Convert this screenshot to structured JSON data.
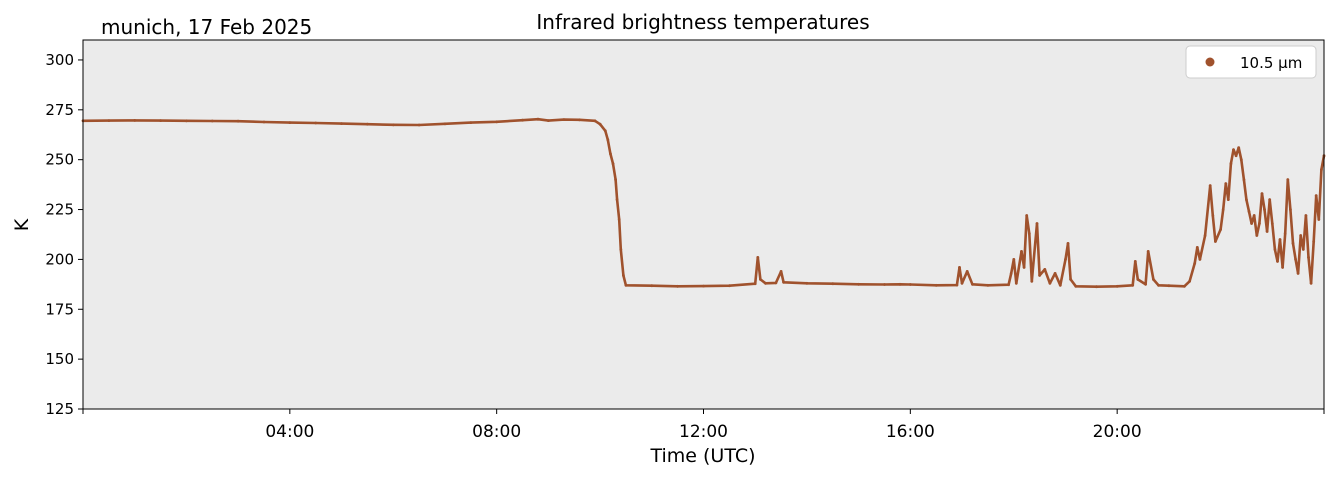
{
  "chart_data": {
    "type": "scatter",
    "location_date": "munich, 17 Feb 2025",
    "title": "Infrared brightness temperatures",
    "xlabel": "Time (UTC)",
    "ylabel": "K",
    "xlim": [
      0,
      24
    ],
    "ylim": [
      125,
      310
    ],
    "yticks": [
      125,
      150,
      175,
      200,
      225,
      250,
      275,
      300
    ],
    "ytick_labels": [
      "125",
      "150",
      "175",
      "200",
      "225",
      "250",
      "275",
      "300"
    ],
    "xticks": [
      4,
      8,
      12,
      16,
      20
    ],
    "xtick_labels": [
      "04:00",
      "08:00",
      "12:00",
      "16:00",
      "20:00"
    ],
    "grid": false,
    "background": "#ebebeb",
    "legend": {
      "position": "top-right",
      "entries": [
        {
          "label": "10.5 µm",
          "color": "#a0522d"
        }
      ]
    },
    "series": [
      {
        "name": "10.5 µm",
        "color": "#a0522d",
        "points": [
          [
            0.0,
            269.5
          ],
          [
            0.5,
            269.6
          ],
          [
            1.0,
            269.7
          ],
          [
            1.5,
            269.6
          ],
          [
            2.0,
            269.5
          ],
          [
            2.5,
            269.4
          ],
          [
            3.0,
            269.3
          ],
          [
            3.5,
            268.9
          ],
          [
            4.0,
            268.6
          ],
          [
            4.5,
            268.4
          ],
          [
            5.0,
            268.1
          ],
          [
            5.5,
            267.8
          ],
          [
            6.0,
            267.5
          ],
          [
            6.5,
            267.4
          ],
          [
            7.0,
            268.0
          ],
          [
            7.5,
            268.6
          ],
          [
            8.0,
            269.0
          ],
          [
            8.5,
            269.8
          ],
          [
            8.8,
            270.3
          ],
          [
            9.0,
            269.6
          ],
          [
            9.3,
            270.1
          ],
          [
            9.6,
            270.0
          ],
          [
            9.9,
            269.5
          ],
          [
            10.0,
            267.8
          ],
          [
            10.1,
            264.5
          ],
          [
            10.15,
            260.0
          ],
          [
            10.2,
            253.0
          ],
          [
            10.25,
            248.0
          ],
          [
            10.3,
            240.0
          ],
          [
            10.33,
            230.0
          ],
          [
            10.37,
            220.0
          ],
          [
            10.4,
            205.0
          ],
          [
            10.45,
            192.0
          ],
          [
            10.5,
            187.0
          ],
          [
            11.0,
            186.8
          ],
          [
            11.5,
            186.5
          ],
          [
            12.0,
            186.6
          ],
          [
            12.5,
            186.8
          ],
          [
            13.0,
            187.8
          ],
          [
            13.05,
            201.0
          ],
          [
            13.1,
            190.0
          ],
          [
            13.2,
            188.0
          ],
          [
            13.4,
            188.2
          ],
          [
            13.5,
            194.0
          ],
          [
            13.55,
            188.5
          ],
          [
            14.0,
            188.0
          ],
          [
            14.5,
            187.8
          ],
          [
            15.0,
            187.5
          ],
          [
            15.5,
            187.4
          ],
          [
            15.8,
            187.5
          ],
          [
            16.0,
            187.4
          ],
          [
            16.5,
            187.0
          ],
          [
            16.9,
            187.1
          ],
          [
            16.95,
            196.0
          ],
          [
            17.0,
            188.0
          ],
          [
            17.1,
            194.0
          ],
          [
            17.2,
            187.5
          ],
          [
            17.5,
            187.0
          ],
          [
            17.9,
            187.3
          ],
          [
            17.95,
            193.0
          ],
          [
            18.0,
            200.0
          ],
          [
            18.05,
            188.0
          ],
          [
            18.15,
            204.0
          ],
          [
            18.2,
            196.0
          ],
          [
            18.25,
            222.0
          ],
          [
            18.3,
            213.0
          ],
          [
            18.35,
            189.0
          ],
          [
            18.45,
            218.0
          ],
          [
            18.5,
            192.0
          ],
          [
            18.6,
            195.0
          ],
          [
            18.7,
            188.0
          ],
          [
            18.8,
            193.0
          ],
          [
            18.9,
            187.0
          ],
          [
            19.0,
            200.0
          ],
          [
            19.05,
            208.0
          ],
          [
            19.1,
            190.0
          ],
          [
            19.2,
            186.5
          ],
          [
            19.6,
            186.3
          ],
          [
            20.0,
            186.5
          ],
          [
            20.3,
            187.0
          ],
          [
            20.35,
            199.0
          ],
          [
            20.4,
            190.0
          ],
          [
            20.55,
            187.5
          ],
          [
            20.6,
            204.0
          ],
          [
            20.7,
            190.0
          ],
          [
            20.8,
            187.0
          ],
          [
            21.0,
            186.8
          ],
          [
            21.3,
            186.5
          ],
          [
            21.4,
            189.0
          ],
          [
            21.5,
            198.0
          ],
          [
            21.55,
            206.0
          ],
          [
            21.6,
            200.0
          ],
          [
            21.7,
            212.0
          ],
          [
            21.8,
            237.0
          ],
          [
            21.85,
            222.0
          ],
          [
            21.9,
            209.0
          ],
          [
            22.0,
            215.0
          ],
          [
            22.05,
            225.0
          ],
          [
            22.1,
            238.0
          ],
          [
            22.15,
            230.0
          ],
          [
            22.2,
            248.0
          ],
          [
            22.25,
            255.0
          ],
          [
            22.3,
            252.0
          ],
          [
            22.35,
            256.0
          ],
          [
            22.4,
            250.0
          ],
          [
            22.45,
            240.0
          ],
          [
            22.5,
            230.0
          ],
          [
            22.55,
            224.0
          ],
          [
            22.6,
            218.0
          ],
          [
            22.65,
            222.0
          ],
          [
            22.7,
            212.0
          ],
          [
            22.75,
            218.0
          ],
          [
            22.8,
            233.0
          ],
          [
            22.85,
            225.0
          ],
          [
            22.9,
            214.0
          ],
          [
            22.95,
            230.0
          ],
          [
            23.0,
            218.0
          ],
          [
            23.05,
            205.0
          ],
          [
            23.1,
            199.0
          ],
          [
            23.15,
            210.0
          ],
          [
            23.2,
            196.0
          ],
          [
            23.25,
            213.0
          ],
          [
            23.3,
            240.0
          ],
          [
            23.35,
            225.0
          ],
          [
            23.4,
            208.0
          ],
          [
            23.45,
            200.0
          ],
          [
            23.5,
            193.0
          ],
          [
            23.55,
            212.0
          ],
          [
            23.6,
            205.0
          ],
          [
            23.65,
            222.0
          ],
          [
            23.7,
            201.0
          ],
          [
            23.75,
            188.0
          ],
          [
            23.8,
            209.0
          ],
          [
            23.85,
            232.0
          ],
          [
            23.9,
            220.0
          ],
          [
            23.95,
            245.0
          ],
          [
            24.0,
            252.0
          ]
        ]
      }
    ]
  }
}
